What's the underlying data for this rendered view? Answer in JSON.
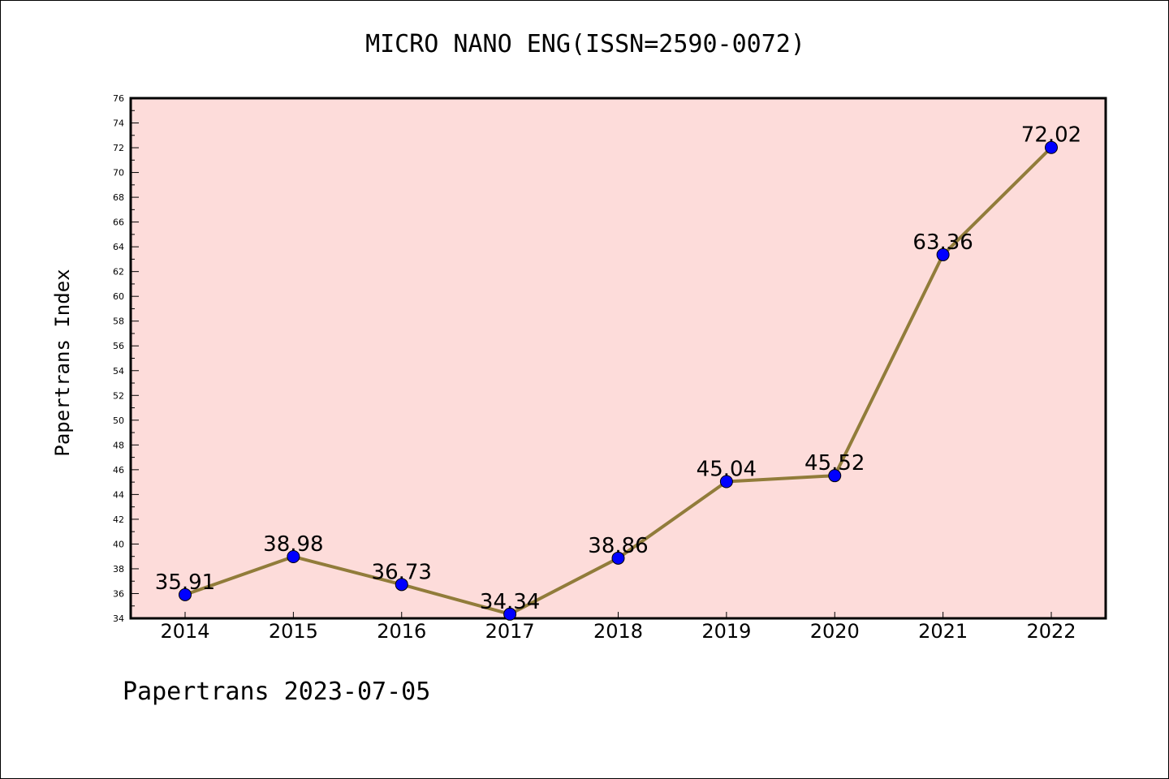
{
  "chart_data": {
    "type": "line",
    "title": "MICRO NANO ENG(ISSN=2590-0072)",
    "xlabel": "",
    "ylabel": "Papertrans Index",
    "categories": [
      "2014",
      "2015",
      "2016",
      "2017",
      "2018",
      "2019",
      "2020",
      "2021",
      "2022"
    ],
    "series": [
      {
        "values": [
          35.91,
          38.98,
          36.73,
          34.34,
          38.86,
          45.04,
          45.52,
          63.36,
          72.02
        ],
        "labels": [
          "35.91",
          "38.98",
          "36.73",
          "34.34",
          "38.86",
          "45.04",
          "45.52",
          "63.36",
          "72.02"
        ]
      }
    ],
    "ylim": [
      34,
      76
    ],
    "y_ticks": [
      34,
      36,
      38,
      40,
      42,
      44,
      46,
      48,
      50,
      52,
      54,
      56,
      58,
      60,
      62,
      64,
      66,
      68,
      70,
      72,
      74,
      76
    ],
    "grid": false,
    "legend": "none",
    "colors": {
      "plot_background": "#fddcda",
      "line": "#917c3a",
      "marker": "#0000ff",
      "axis": "#000000"
    }
  },
  "footer": "Papertrans 2023-07-05"
}
